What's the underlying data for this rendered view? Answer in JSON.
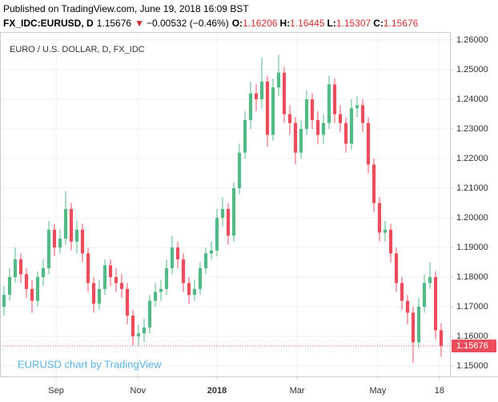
{
  "chart_data": {
    "type": "candlestick",
    "published": "Published on TradingView.com, June 19, 2018 16:09 BST",
    "symbol": "FX_IDC:EURUSD, D",
    "change_arrow": "▼",
    "change": "−0.00532 (−0.46%)",
    "open_label": "O:",
    "high_label": "H:",
    "low_label": "L:",
    "close_label": "C:",
    "title": "EURO / U.S. DOLLAR, D, FX_IDC",
    "watermark": "EURUSD chart by TradingView",
    "up_color": "#53b987",
    "down_color": "#eb4d5c",
    "grid": true,
    "open": [
      1.17,
      1.174,
      1.18,
      1.186,
      1.181,
      1.176,
      1.172,
      1.18,
      1.183,
      1.196,
      1.19,
      1.193,
      1.203,
      1.192,
      1.196,
      1.188,
      1.178,
      1.171,
      1.176,
      1.184,
      1.18,
      1.178,
      1.176,
      1.167,
      1.16,
      1.161,
      1.163,
      1.172,
      1.175,
      1.176,
      1.183,
      1.19,
      1.186,
      1.178,
      1.174,
      1.176,
      1.183,
      1.188,
      1.189,
      1.2,
      1.203,
      1.194,
      1.21,
      1.222,
      1.233,
      1.242,
      1.24,
      1.246,
      1.228,
      1.244,
      1.249,
      1.235,
      1.232,
      1.222,
      1.23,
      1.24,
      1.233,
      1.228,
      1.232,
      1.245,
      1.235,
      1.232,
      1.225,
      1.237,
      1.238,
      1.232,
      1.218,
      1.205,
      1.195,
      1.196,
      1.188,
      1.178,
      1.172,
      1.168,
      1.158,
      1.17,
      1.178,
      1.18,
      1.16206
    ],
    "high": [
      1.177,
      1.183,
      1.19,
      1.188,
      1.183,
      1.179,
      1.182,
      1.186,
      1.199,
      1.198,
      1.196,
      1.209,
      1.205,
      1.199,
      1.198,
      1.19,
      1.18,
      1.179,
      1.186,
      1.186,
      1.183,
      1.181,
      1.178,
      1.169,
      1.164,
      1.166,
      1.174,
      1.178,
      1.179,
      1.186,
      1.194,
      1.192,
      1.188,
      1.18,
      1.179,
      1.185,
      1.19,
      1.192,
      1.203,
      1.207,
      1.205,
      1.212,
      1.225,
      1.236,
      1.246,
      1.245,
      1.254,
      1.248,
      1.247,
      1.255,
      1.251,
      1.238,
      1.234,
      1.233,
      1.243,
      1.242,
      1.236,
      1.235,
      1.248,
      1.247,
      1.238,
      1.234,
      1.24,
      1.241,
      1.24,
      1.234,
      1.22,
      1.207,
      1.199,
      1.198,
      1.19,
      1.18,
      1.174,
      1.17,
      1.173,
      1.181,
      1.185,
      1.182,
      1.16445
    ],
    "low": [
      1.167,
      1.172,
      1.178,
      1.178,
      1.173,
      1.168,
      1.17,
      1.177,
      1.181,
      1.187,
      1.188,
      1.191,
      1.189,
      1.188,
      1.185,
      1.175,
      1.168,
      1.169,
      1.174,
      1.177,
      1.175,
      1.173,
      1.164,
      1.157,
      1.157,
      1.158,
      1.161,
      1.17,
      1.172,
      1.174,
      1.181,
      1.183,
      1.175,
      1.171,
      1.172,
      1.174,
      1.181,
      1.186,
      1.187,
      1.197,
      1.191,
      1.192,
      1.208,
      1.22,
      1.23,
      1.236,
      1.237,
      1.224,
      1.226,
      1.241,
      1.232,
      1.228,
      1.218,
      1.22,
      1.228,
      1.23,
      1.225,
      1.225,
      1.23,
      1.232,
      1.229,
      1.222,
      1.223,
      1.234,
      1.229,
      1.215,
      1.202,
      1.192,
      1.192,
      1.185,
      1.175,
      1.169,
      1.164,
      1.151,
      1.156,
      1.168,
      1.176,
      1.159,
      1.15307
    ],
    "close": [
      1.174,
      1.18,
      1.186,
      1.181,
      1.176,
      1.172,
      1.18,
      1.183,
      1.196,
      1.19,
      1.193,
      1.203,
      1.192,
      1.196,
      1.188,
      1.178,
      1.171,
      1.176,
      1.184,
      1.18,
      1.178,
      1.176,
      1.167,
      1.16,
      1.161,
      1.163,
      1.172,
      1.175,
      1.176,
      1.183,
      1.19,
      1.186,
      1.178,
      1.174,
      1.176,
      1.183,
      1.188,
      1.189,
      1.2,
      1.203,
      1.194,
      1.21,
      1.222,
      1.233,
      1.242,
      1.24,
      1.246,
      1.228,
      1.244,
      1.249,
      1.235,
      1.232,
      1.222,
      1.23,
      1.24,
      1.233,
      1.228,
      1.232,
      1.245,
      1.235,
      1.232,
      1.225,
      1.237,
      1.238,
      1.232,
      1.218,
      1.205,
      1.195,
      1.196,
      1.188,
      1.178,
      1.172,
      1.168,
      1.158,
      1.17,
      1.178,
      1.18,
      1.16208,
      1.15676
    ],
    "xlim": [
      -0.714,
      79.57
    ],
    "xticks": [
      {
        "value": 9.3,
        "label": "Sep"
      },
      {
        "value": 23.9,
        "label": "Nov"
      },
      {
        "value": 38,
        "label": "2018"
      },
      {
        "value": 52.3,
        "label": "Mar"
      },
      {
        "value": 66.7,
        "label": "May"
      },
      {
        "value": 77.7,
        "label": "18"
      }
    ],
    "ylim": [
      1.1465,
      1.2627
    ],
    "yticks": [
      {
        "value": 1.15,
        "label": "1.15000"
      },
      {
        "value": 1.16,
        "label": "1.16000"
      },
      {
        "value": 1.17,
        "label": "1.17000"
      },
      {
        "value": 1.18,
        "label": "1.18000"
      },
      {
        "value": 1.19,
        "label": "1.19000"
      },
      {
        "value": 1.2,
        "label": "1.20000"
      },
      {
        "value": 1.21,
        "label": "1.21000"
      },
      {
        "value": 1.22,
        "label": "1.22000"
      },
      {
        "value": 1.23,
        "label": "1.23000"
      },
      {
        "value": 1.24,
        "label": "1.24000"
      },
      {
        "value": 1.25,
        "label": "1.25000"
      },
      {
        "value": 1.26,
        "label": "1.26000"
      }
    ]
  }
}
